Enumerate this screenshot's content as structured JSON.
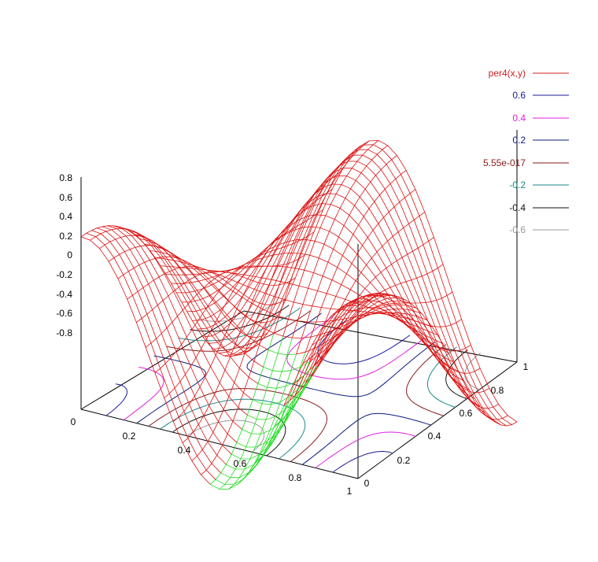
{
  "chart_data": {
    "type": "surface3d",
    "function_name": "per4(x,y)",
    "x_range": [
      0,
      1
    ],
    "y_range": [
      0,
      1
    ],
    "z_range": [
      -0.8,
      0.8
    ],
    "x_ticks": [
      "0",
      "0.2",
      "0.4",
      "0.6",
      "0.8",
      "1"
    ],
    "y_ticks": [
      "0",
      "0.2",
      "0.4",
      "0.6",
      "0.8",
      "1"
    ],
    "z_ticks": [
      "0.8",
      "0.6",
      "0.4",
      "0.2",
      "0",
      "-0.2",
      "-0.4",
      "-0.6",
      "-0.8"
    ],
    "surface_color": "#dd1111",
    "surface_underside_color": "#22dd22",
    "contour_levels": [
      0.6,
      0.4,
      0.2,
      0.0,
      -0.2,
      -0.4,
      -0.6
    ],
    "legend": [
      {
        "label": "per4(x,y)",
        "color": "#cc2222"
      },
      {
        "label": "0.6",
        "color": "#1a1a99"
      },
      {
        "label": "0.4",
        "color": "#dd22dd"
      },
      {
        "label": "0.2",
        "color": "#0b1e7a"
      },
      {
        "label": "5.55e-017",
        "color": "#8b1a1a"
      },
      {
        "label": "-0.2",
        "color": "#1a8a8a"
      },
      {
        "label": "-0.4",
        "color": "#111111"
      },
      {
        "label": "-0.6",
        "color": "#999999"
      }
    ]
  }
}
